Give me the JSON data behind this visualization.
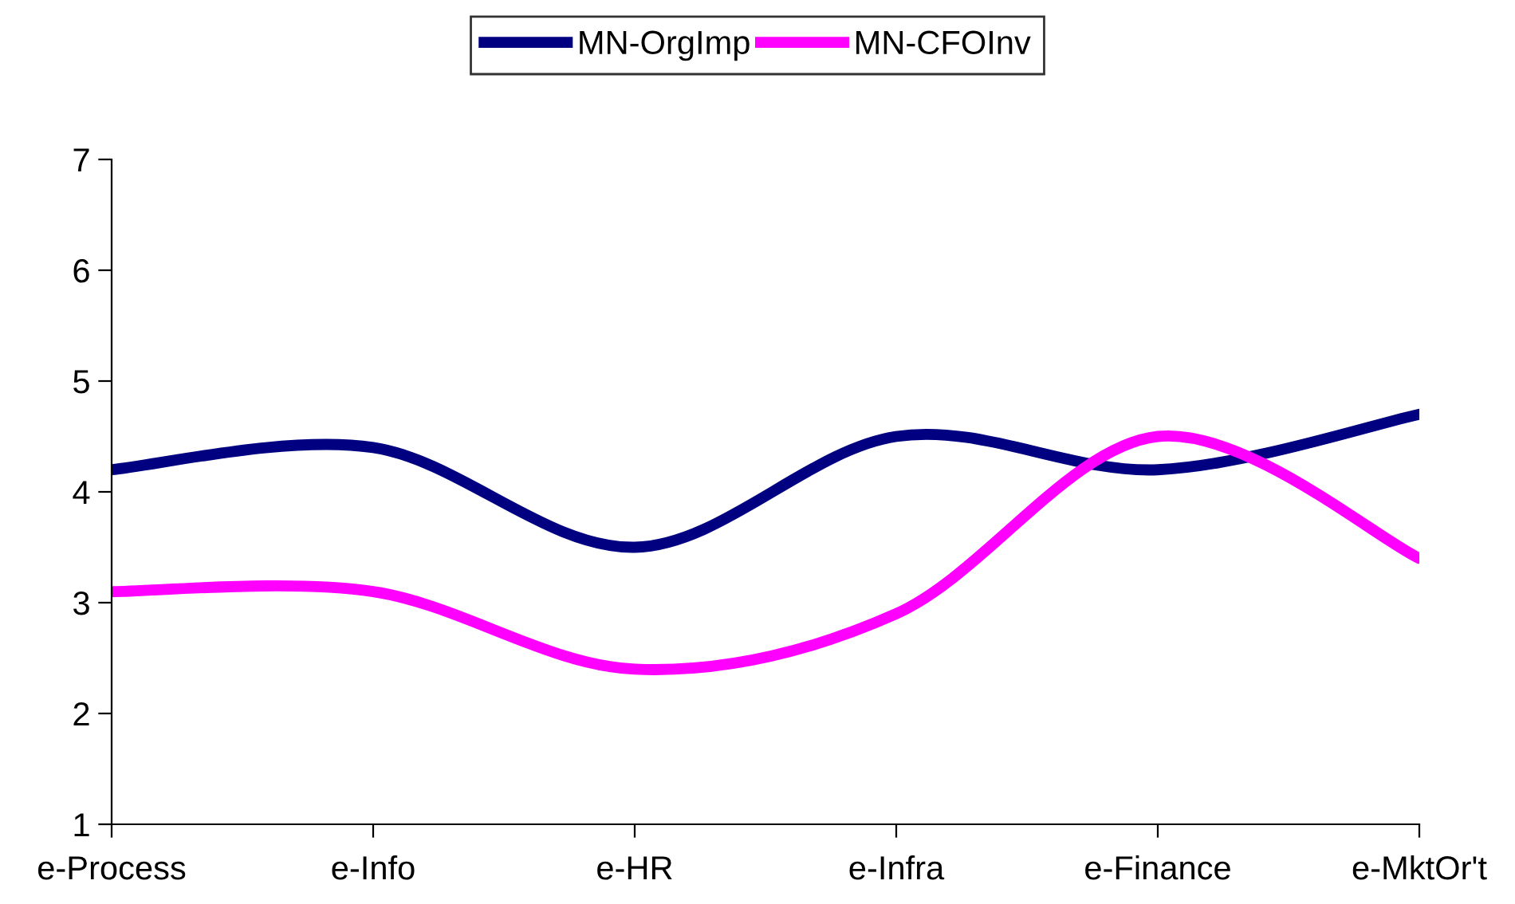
{
  "chart_data": {
    "type": "line",
    "categories": [
      "e-Process",
      "e-Info",
      "e-HR",
      "e-Infra",
      "e-Finance",
      "e-MktOr't"
    ],
    "series": [
      {
        "name": "MN-OrgImp",
        "color": "#000080",
        "values": [
          4.2,
          4.4,
          3.5,
          4.5,
          4.2,
          4.7
        ]
      },
      {
        "name": "MN-CFOInv",
        "color": "#ff00ff",
        "values": [
          3.1,
          3.1,
          2.4,
          2.9,
          4.5,
          3.4
        ]
      }
    ],
    "ylim": [
      1,
      7
    ],
    "yticks": [
      1,
      2,
      3,
      4,
      5,
      6,
      7
    ],
    "grid": false,
    "legend": "top",
    "marker": "none",
    "line_style": "solid"
  }
}
